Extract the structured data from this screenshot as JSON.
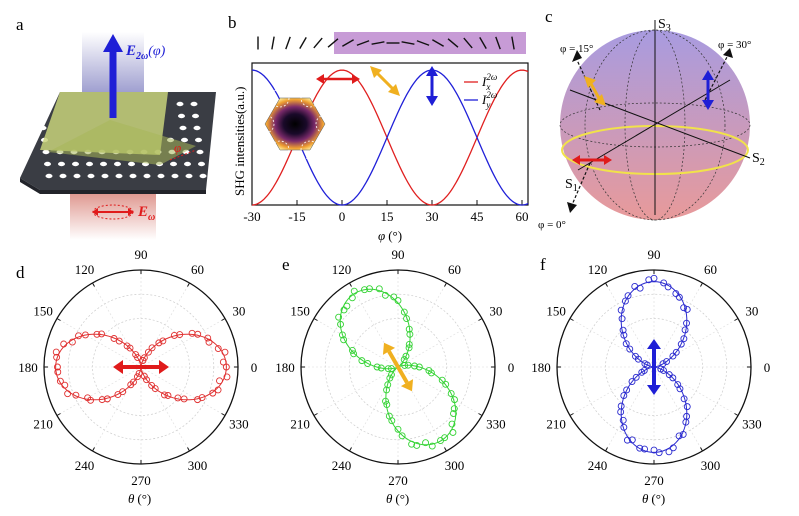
{
  "panels": {
    "a": {
      "letter": "a",
      "e2w_label_main": "E",
      "e2w_label_sub": "2ω",
      "e2w_label_arg": "(φ)",
      "ew_label_main": "E",
      "ew_label_sub": "ω",
      "phi_label": "φ",
      "colors": {
        "beam_top": "#8f8fc8",
        "beam_bottom": "#e6a9a0",
        "substrate": "#3a3d44",
        "flake": "#c8d27a",
        "arrow_blue": "#1f1fd6",
        "arrow_red": "#e01b1b"
      }
    },
    "b": {
      "letter": "b",
      "ylabel": "SHG intensities(a.u.)",
      "xlabel_main": "φ",
      "xlabel_unit": "(°)",
      "legend": [
        {
          "main": "I",
          "sub": "x",
          "sup": "2ω",
          "color": "#e02020"
        },
        {
          "main": "I",
          "sub": "y",
          "sup": "2ω",
          "color": "#2020d8"
        }
      ],
      "colors": {
        "band": "#c79bd6"
      }
    },
    "c": {
      "letter": "c",
      "axes": [
        {
          "main": "S",
          "sub": "3"
        },
        {
          "main": "S",
          "sub": "2"
        },
        {
          "main": "S",
          "sub": "1"
        }
      ],
      "annotations": [
        "φ = 15°",
        "φ = 30°",
        "φ = 0°"
      ],
      "colors": {
        "sphere_top": "#a89be0",
        "sphere_bottom": "#e79a9a",
        "equator": "#f1e24a"
      }
    },
    "d": {
      "letter": "d",
      "label_main": "θ",
      "label_unit": "(°)",
      "color": "#e03030"
    },
    "e": {
      "letter": "e",
      "label_main": "θ",
      "label_unit": "(°)",
      "color": "#35d335"
    },
    "f": {
      "letter": "f",
      "label_main": "θ",
      "label_unit": "(°)",
      "color": "#2a2acf"
    }
  },
  "chart_data": [
    {
      "type": "line",
      "panel": "b",
      "xlabel": "φ (°)",
      "ylabel": "SHG intensities(a.u.)",
      "xlim": [
        -30,
        62
      ],
      "ylim": [
        0,
        1
      ],
      "xticks": [
        -30,
        -15,
        0,
        15,
        30,
        45,
        60
      ],
      "series": [
        {
          "name": "Ix 2ω",
          "color": "#e02020",
          "x": [
            -30,
            -22.5,
            -15,
            -7.5,
            0,
            7.5,
            15,
            22.5,
            30,
            37.5,
            45,
            52.5,
            60
          ],
          "y": [
            0,
            0.15,
            0.5,
            0.85,
            1,
            0.85,
            0.5,
            0.15,
            0,
            0.15,
            0.5,
            0.85,
            1
          ]
        },
        {
          "name": "Iy 2ω",
          "color": "#2020d8",
          "x": [
            -30,
            -22.5,
            -15,
            -7.5,
            0,
            7.5,
            15,
            22.5,
            30,
            37.5,
            45,
            52.5,
            60
          ],
          "y": [
            1,
            0.85,
            0.5,
            0.15,
            0,
            0.15,
            0.5,
            0.85,
            1,
            0.85,
            0.5,
            0.15,
            0
          ]
        }
      ]
    },
    {
      "type": "scatter",
      "panel": "d",
      "coordinate": "polar",
      "angle_ticks": [
        0,
        30,
        60,
        90,
        120,
        150,
        180,
        210,
        240,
        270,
        300,
        330
      ],
      "lobe_angle_deg": 0,
      "model": "r = cos^2(θ - 0°)",
      "points_deg": [
        0,
        10,
        20,
        30,
        40,
        50,
        60,
        70,
        80,
        90,
        100,
        110,
        120,
        130,
        140,
        150,
        160,
        170,
        180,
        190,
        200,
        210,
        220,
        230,
        240,
        250,
        260,
        270,
        280,
        290,
        300,
        310,
        320,
        330,
        340,
        350
      ]
    },
    {
      "type": "scatter",
      "panel": "e",
      "coordinate": "polar",
      "angle_ticks": [
        0,
        30,
        60,
        90,
        120,
        150,
        180,
        210,
        240,
        270,
        300,
        330
      ],
      "lobe_angle_deg": 120,
      "model": "r = cos^2(θ - 120°)",
      "points_deg": [
        0,
        10,
        20,
        30,
        40,
        50,
        60,
        70,
        80,
        90,
        100,
        110,
        120,
        130,
        140,
        150,
        160,
        170,
        180,
        190,
        200,
        210,
        220,
        230,
        240,
        250,
        260,
        270,
        280,
        290,
        300,
        310,
        320,
        330,
        340,
        350
      ]
    },
    {
      "type": "scatter",
      "panel": "f",
      "coordinate": "polar",
      "angle_ticks": [
        0,
        30,
        60,
        90,
        120,
        150,
        180,
        210,
        240,
        270,
        300,
        330
      ],
      "lobe_angle_deg": 90,
      "model": "r = cos^2(θ - 90°)",
      "points_deg": [
        0,
        10,
        20,
        30,
        40,
        50,
        60,
        70,
        80,
        90,
        100,
        110,
        120,
        130,
        140,
        150,
        160,
        170,
        180,
        190,
        200,
        210,
        220,
        230,
        240,
        250,
        260,
        270,
        280,
        290,
        300,
        310,
        320,
        330,
        340,
        350
      ]
    }
  ]
}
